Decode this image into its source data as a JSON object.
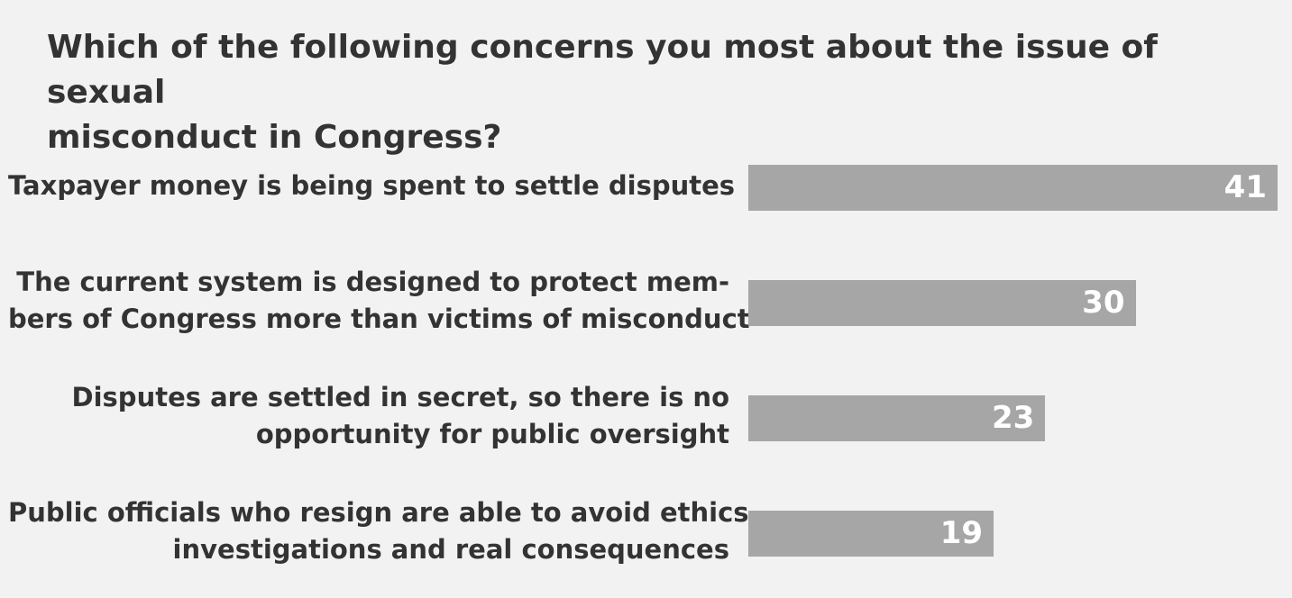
{
  "chart_data": {
    "type": "bar",
    "orientation": "horizontal",
    "title": "Which of the following concerns you most about the issue of sexual misconduct in Congress?",
    "categories": [
      "Taxpayer money is being spent to settle disputes",
      "The current system is designed to protect members of Congress more than victims of misconduct",
      "Disputes are settled in secret, so there is no opportunity for public oversight",
      "Public officials who resign are able to avoid ethics investigations and real consequences"
    ],
    "values": [
      41,
      30,
      23,
      19
    ],
    "data_labels": [
      "41",
      "30",
      "23",
      "19"
    ],
    "xlim": [
      0,
      41
    ],
    "grid": false,
    "legend": "none",
    "bar_color": "#a6a6a6",
    "background_color": "#f2f2f2",
    "text_color": "#333333",
    "value_label_color": "#ffffff"
  },
  "title_lines": [
    "Which of the following concerns you most about the issue of sexual",
    "misconduct in Congress?"
  ],
  "category_lines": [
    [
      "Taxpayer money is being spent to settle disputes"
    ],
    [
      "The current system is designed to protect mem-",
      "bers of Congress more than victims of misconduct"
    ],
    [
      "Disputes are settled in secret, so there is no",
      "opportunity for public oversight"
    ],
    [
      "Public officials who resign are able to avoid ethics",
      "investigations and real consequences"
    ]
  ]
}
